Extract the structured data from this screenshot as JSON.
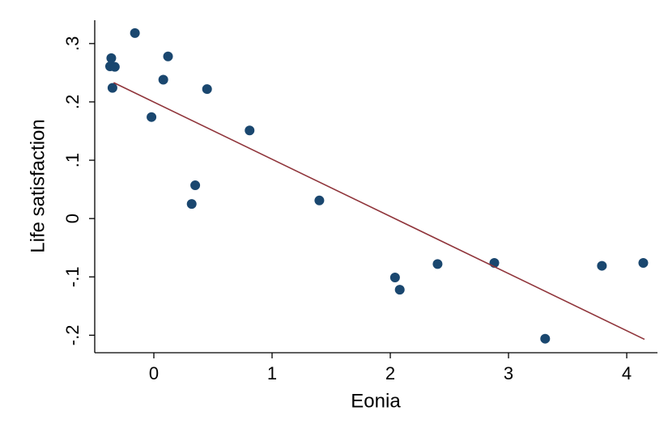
{
  "chart_data": {
    "type": "scatter",
    "x_label": "Eonia",
    "y_label": "Life satisfaction",
    "xlim": [
      -0.5,
      4.26
    ],
    "ylim": [
      -0.23,
      0.34
    ],
    "xticks": [
      0,
      1,
      2,
      3,
      4
    ],
    "yticks": [
      {
        "value": -0.2,
        "label": "-.2"
      },
      {
        "value": -0.1,
        "label": "-.1"
      },
      0,
      {
        "value": 0.1,
        "label": ".1"
      },
      {
        "value": 0.2,
        "label": ".2"
      },
      {
        "value": 0.3,
        "label": ".3"
      }
    ],
    "grid": false,
    "series": [
      {
        "type": "scatter",
        "color": "#1a476f",
        "x": [
          -0.36,
          -0.37,
          -0.33,
          -0.35,
          -0.16,
          -0.02,
          0.08,
          0.12,
          0.45,
          0.35,
          0.32,
          0.81,
          1.4,
          2.04,
          2.08,
          2.4,
          2.88,
          3.31,
          3.79,
          4.14
        ],
        "values": [
          0.275,
          0.261,
          0.26,
          0.224,
          0.318,
          0.174,
          0.238,
          0.278,
          0.222,
          0.057,
          0.025,
          0.151,
          0.031,
          -0.101,
          -0.122,
          -0.078,
          -0.076,
          -0.206,
          -0.081,
          -0.076
        ]
      },
      {
        "type": "line",
        "color": "#90353b",
        "x": [
          -0.34,
          4.15
        ],
        "values": [
          0.233,
          -0.207
        ]
      }
    ]
  }
}
